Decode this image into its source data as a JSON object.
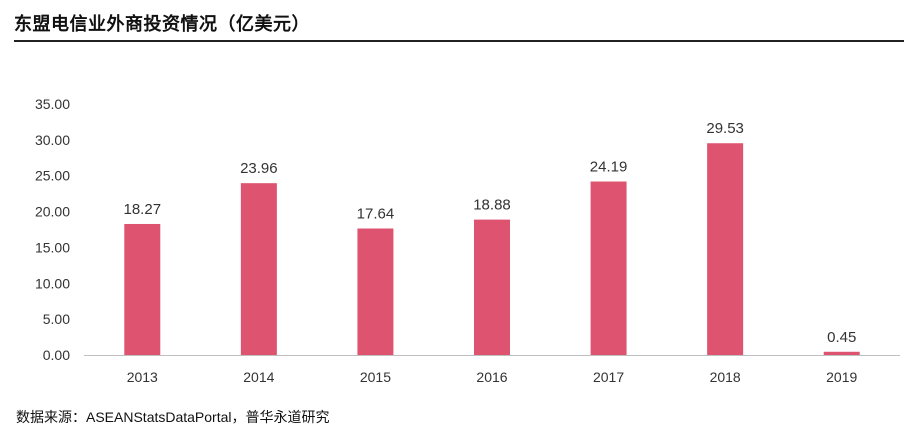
{
  "title": "东盟电信业外商投资情况（亿美元）",
  "source": "数据来源：ASEANStatsDataPortal，普华永道研究",
  "chart_data": {
    "type": "bar",
    "categories": [
      "2013",
      "2014",
      "2015",
      "2016",
      "2017",
      "2018",
      "2019"
    ],
    "values": [
      18.27,
      23.96,
      17.64,
      18.88,
      24.19,
      29.53,
      0.45
    ],
    "value_labels": [
      "18.27",
      "23.96",
      "17.64",
      "18.88",
      "24.19",
      "29.53",
      "0.45"
    ],
    "yticks": [
      "0.00",
      "5.00",
      "10.00",
      "15.00",
      "20.00",
      "25.00",
      "30.00",
      "35.00"
    ],
    "ylim": [
      0,
      35
    ],
    "grid": false,
    "bar_color": "#de5470",
    "axis_color": "#bfbfbf"
  }
}
